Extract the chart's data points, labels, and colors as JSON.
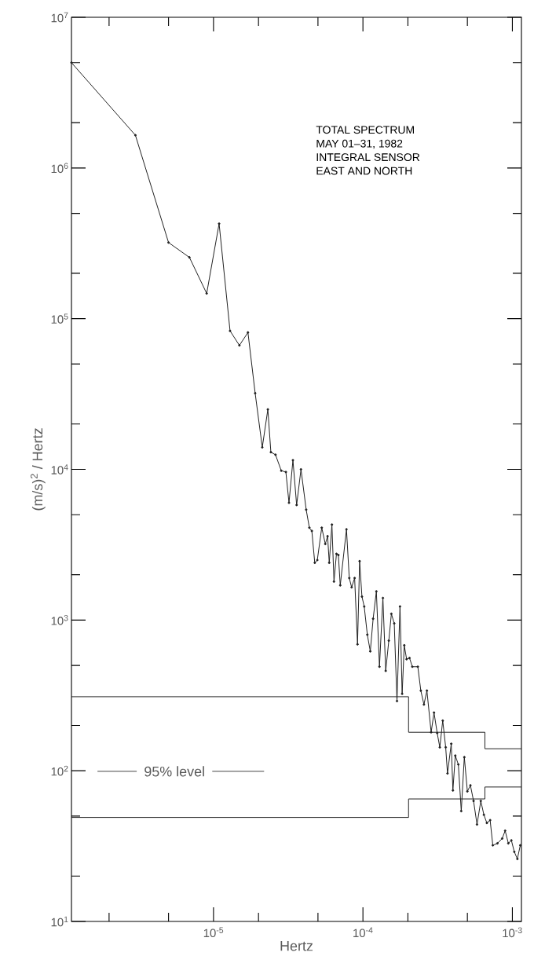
{
  "chart_data": {
    "type": "line",
    "xlabel": "Hertz",
    "ylabel": "(m/s)$^{2}$ / Hertz",
    "log": "xy",
    "annotations": [
      "TOTAL SPECTRUM",
      "MAY 01–31, 1982",
      "INTEGRAL SENSOR",
      "EAST AND NORTH",
      "95% level"
    ],
    "xlim": [
      1.12e-06,
      0.00115
    ],
    "ylim": [
      10,
      10000000.0
    ],
    "xticks": [
      {
        "value": 2e-06,
        "label": null
      },
      {
        "value": 5e-06,
        "label": null
      },
      {
        "value": 1e-05,
        "label": "10$^{-5}$"
      },
      {
        "value": 2e-05,
        "label": null
      },
      {
        "value": 5e-05,
        "label": null
      },
      {
        "value": 0.0001,
        "label": "10$^{-4}$"
      },
      {
        "value": 0.0002,
        "label": null
      },
      {
        "value": 0.0005,
        "label": null
      },
      {
        "value": 0.001,
        "label": "10$^{-3}$"
      }
    ],
    "yticks": [
      {
        "value": 10,
        "label": "10$^{1}$"
      },
      {
        "value": 20,
        "label": null
      },
      {
        "value": 50,
        "label": null
      },
      {
        "value": 100,
        "label": "10$^{2}$"
      },
      {
        "value": 200,
        "label": null
      },
      {
        "value": 500,
        "label": null
      },
      {
        "value": 1000,
        "label": "10$^{3}$"
      },
      {
        "value": 2000,
        "label": null
      },
      {
        "value": 5000,
        "label": null
      },
      {
        "value": 10000,
        "label": "10$^{4}$"
      },
      {
        "value": 20000,
        "label": null
      },
      {
        "value": 50000,
        "label": null
      },
      {
        "value": 100000,
        "label": "10$^{5}$"
      },
      {
        "value": 200000,
        "label": null
      },
      {
        "value": 500000,
        "label": null
      },
      {
        "value": 1000000,
        "label": "10$^{6}$"
      },
      {
        "value": 2000000,
        "label": null
      },
      {
        "value": 5000000,
        "label": null
      },
      {
        "value": 10000000,
        "label": "10$^{7}$"
      }
    ],
    "series": [
      {
        "color": "#222222",
        "marker": "circle",
        "x": [
          1.12e-06,
          3e-06,
          5e-06,
          6.9e-06,
          9e-06,
          1.09e-05,
          1.29e-05,
          1.49e-05,
          1.7e-05,
          1.9e-05,
          2.12e-05,
          2.31e-05,
          2.42e-05,
          2.6e-05,
          2.84e-05,
          3.05e-05,
          3.2e-05,
          3.4e-05,
          3.6e-05,
          3.85e-05,
          4.17e-05,
          4.38e-05,
          4.55e-05,
          4.76e-05,
          4.95e-05,
          5.3e-05,
          5.6e-05,
          5.8e-05,
          5.95e-05,
          6.2e-05,
          6.4e-05,
          6.65e-05,
          6.85e-05,
          7.05e-05,
          7.76e-05,
          8.1e-05,
          8.4e-05,
          8.8e-05,
          9.2e-05,
          9.5e-05,
          9.85e-05,
          0.000102,
          0.000107,
          0.000112,
          0.000117,
          0.000123,
          0.000129,
          0.000136,
          0.000142,
          0.000149,
          0.000155,
          0.000162,
          0.000169,
          0.000177,
          0.000183,
          0.000189,
          0.000196,
          0.000205,
          0.000214,
          0.000233,
          0.000244,
          0.000256,
          0.000268,
          0.000286,
          0.000299,
          0.000314,
          0.000327,
          0.000342,
          0.000358,
          0.000368,
          0.00039,
          0.0004,
          0.000415,
          0.000435,
          0.000455,
          0.000477,
          0.0005,
          0.000524,
          0.00055,
          0.00058,
          0.000615,
          0.000645,
          0.000675,
          0.00071,
          0.00074,
          0.000795,
          0.000855,
          0.000895,
          0.00094,
          0.000985,
          0.00103,
          0.00108,
          0.00113
        ],
        "values": [
          5000000.0,
          1650000.0,
          320000.0,
          255000.0,
          147000.0,
          427000.0,
          83000.0,
          66500.0,
          81000.0,
          32000.0,
          14000.0,
          25000.0,
          13000.0,
          12500.0,
          9800.0,
          9600.0,
          6000.0,
          11500.0,
          5800.0,
          10000.0,
          5400.0,
          4100.0,
          3900.0,
          2400.0,
          2500.0,
          4100.0,
          3200.0,
          3600.0,
          2400.0,
          4300.0,
          1800.0,
          2750.0,
          2700.0,
          1700.0,
          4000.0,
          1900.0,
          1650.0,
          1900.0,
          690.0,
          2460.0,
          1430.0,
          1230.0,
          800.0,
          620.0,
          1020.0,
          1550.0,
          490.0,
          1400.0,
          460.0,
          730.0,
          1100.0,
          950.0,
          290.0,
          1230.0,
          324.0,
          680.0,
          550.0,
          560.0,
          490.0,
          490.0,
          340.0,
          275.0,
          340.0,
          180.0,
          243.0,
          178.0,
          143.0,
          215.0,
          143.0,
          96.0,
          151.0,
          74.0,
          126.0,
          110.0,
          54.0,
          123.0,
          73.0,
          80.0,
          63.0,
          44.0,
          63.0,
          51.0,
          45.0,
          47.0,
          32.0,
          33.0,
          35.5,
          40.0,
          33.0,
          34.5,
          29.0,
          26.0,
          32.0
        ]
      },
      {
        "type": "step",
        "color": "#222222",
        "x": [
          1.12e-06,
          0.000202,
          0.000655,
          0.00115
        ],
        "values": [
          310,
          180,
          140,
          140
        ]
      },
      {
        "type": "step",
        "color": "#222222",
        "x": [
          1.12e-06,
          0.000202,
          0.000655,
          0.00115
        ],
        "values": [
          49,
          65,
          78,
          78
        ]
      }
    ]
  }
}
